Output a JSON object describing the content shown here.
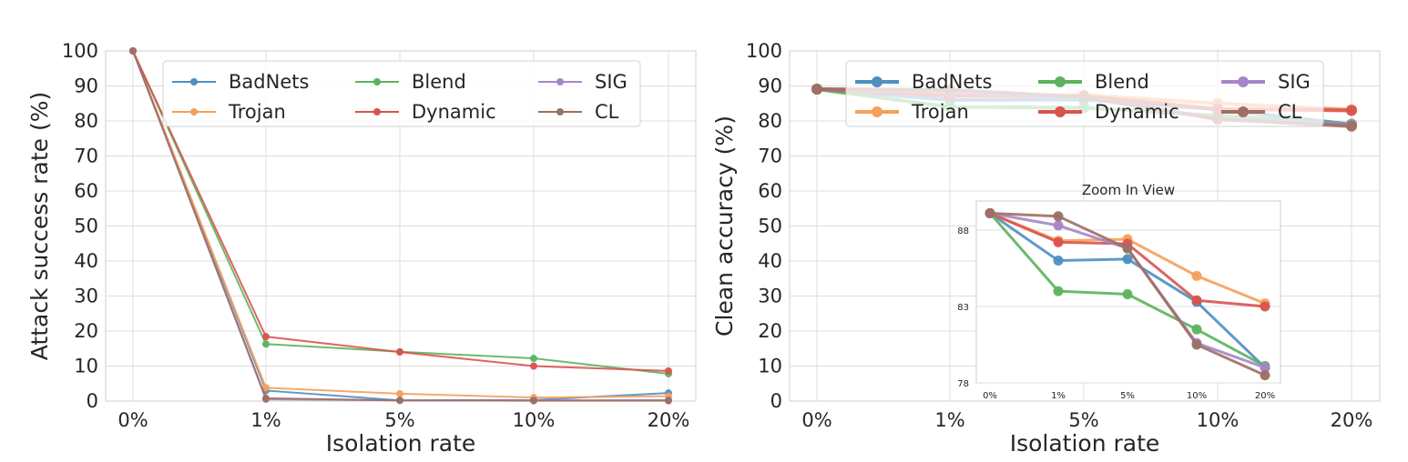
{
  "chart_data": [
    {
      "type": "line",
      "categories": [
        "0%",
        "1%",
        "5%",
        "10%",
        "20%"
      ],
      "xlabel": "Isolation rate",
      "ylabel": "Attack success rate (%)",
      "ylim": [
        0,
        100
      ],
      "yticks": [
        0,
        10,
        20,
        30,
        40,
        50,
        60,
        70,
        80,
        90,
        100
      ],
      "grid": true,
      "legend": "top-right",
      "series": [
        {
          "name": "BadNets",
          "color": "#4c8fc0",
          "values": [
            100,
            3,
            0.2,
            0.3,
            2.3
          ]
        },
        {
          "name": "Trojan",
          "color": "#f5a05a",
          "values": [
            100,
            3.8,
            2.1,
            1.0,
            1.4
          ]
        },
        {
          "name": "Blend",
          "color": "#5cb35c",
          "values": [
            100,
            16.3,
            14.1,
            12.2,
            7.8
          ]
        },
        {
          "name": "Dynamic",
          "color": "#d9534f",
          "values": [
            100,
            18.4,
            14.0,
            10.0,
            8.6
          ]
        },
        {
          "name": "SIG",
          "color": "#a585c8",
          "values": [
            100,
            0.5,
            0.2,
            0.2,
            0.3
          ]
        },
        {
          "name": "CL",
          "color": "#9e6f62",
          "values": [
            100,
            0.8,
            0.2,
            0.1,
            0.1
          ]
        }
      ]
    },
    {
      "type": "line",
      "categories": [
        "0%",
        "1%",
        "5%",
        "10%",
        "20%"
      ],
      "xlabel": "Isolation rate",
      "ylabel": "Clean accuracy (%)",
      "ylim": [
        0,
        100
      ],
      "yticks": [
        0,
        10,
        20,
        30,
        40,
        50,
        60,
        70,
        80,
        90,
        100
      ],
      "grid": true,
      "legend": "top-right",
      "series": [
        {
          "name": "BadNets",
          "color": "#4c8fc0",
          "values": [
            89.1,
            86.0,
            86.1,
            83.3,
            79.0
          ]
        },
        {
          "name": "Trojan",
          "color": "#f5a05a",
          "values": [
            89.1,
            87.3,
            87.4,
            85.0,
            83.2
          ]
        },
        {
          "name": "Blend",
          "color": "#5cb35c",
          "values": [
            89.1,
            84.0,
            83.8,
            81.5,
            79.1
          ]
        },
        {
          "name": "Dynamic",
          "color": "#d9534f",
          "values": [
            89.1,
            87.2,
            87.1,
            83.4,
            83.0
          ]
        },
        {
          "name": "SIG",
          "color": "#a585c8",
          "values": [
            89.1,
            88.3,
            86.8,
            80.6,
            79.0
          ]
        },
        {
          "name": "CL",
          "color": "#9e6f62",
          "values": [
            89.1,
            88.9,
            86.8,
            80.5,
            78.5
          ]
        }
      ],
      "inset": {
        "title": "Zoom In View",
        "ylim": [
          78,
          89.9
        ],
        "yticks": [
          78,
          83,
          88
        ],
        "categories": [
          "0%",
          "1%",
          "5%",
          "10%",
          "20%"
        ]
      }
    }
  ]
}
